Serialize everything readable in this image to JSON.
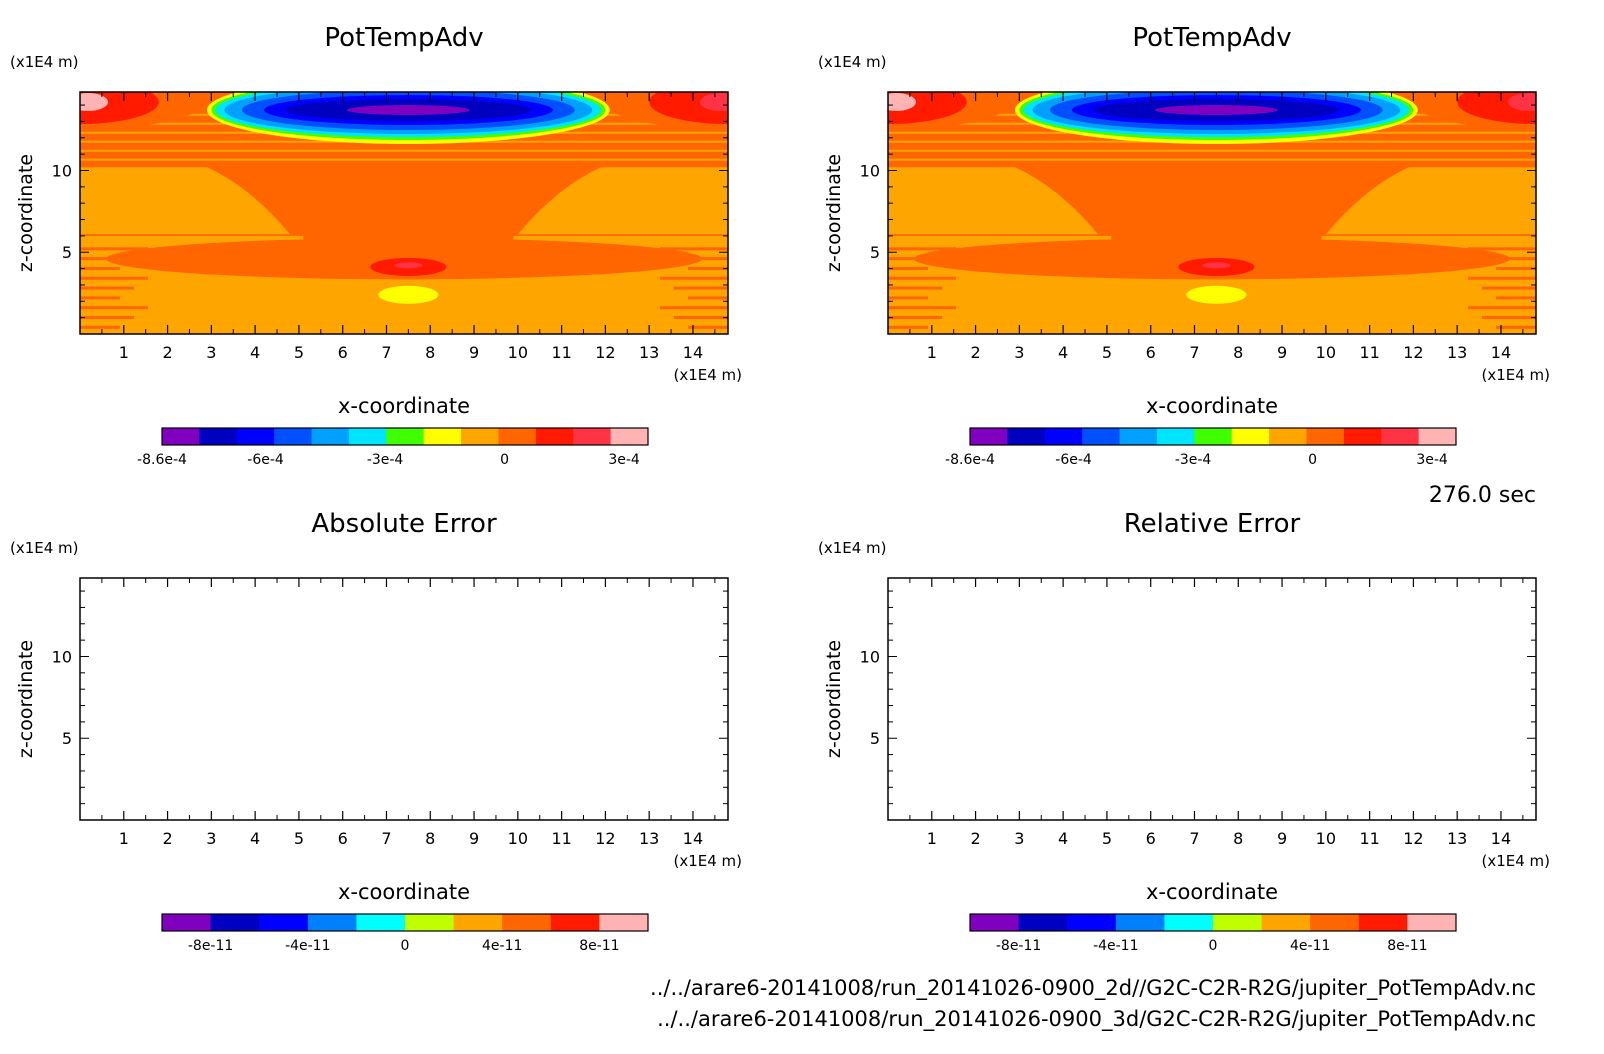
{
  "footer": {
    "timestamp": "276.0 sec",
    "file_1": "../../arare6-20141008/run_20141026-0900_2d//G2C-C2R-R2G/jupiter_PotTempAdv.nc",
    "file_2": "../../arare6-20141008/run_20141026-0900_3d/G2C-C2R-R2G/jupiter_PotTempAdv.nc"
  },
  "chart_data": [
    {
      "type": "heatmap",
      "title": "PotTempAdv",
      "xlabel": "x-coordinate",
      "ylabel": "z-coordinate",
      "x_unit": "(x1E4 m)",
      "y_unit": "(x1E4 m)",
      "xlim": [
        0,
        14.8
      ],
      "ylim": [
        0,
        14.8
      ],
      "x_ticks": [
        "1",
        "2",
        "3",
        "4",
        "5",
        "6",
        "7",
        "8",
        "9",
        "10",
        "11",
        "12",
        "13",
        "14"
      ],
      "y_ticks": [
        "5",
        "10"
      ],
      "colorbar": {
        "colors": [
          "#7f00bf",
          "#0000c0",
          "#0000ff",
          "#0050ff",
          "#00a0ff",
          "#00e5ff",
          "#40ff00",
          "#ffff00",
          "#ffa500",
          "#ff6600",
          "#ff1a00",
          "#ff3344",
          "#ffb3b3"
        ],
        "tick_labels": [
          "-8.6e-4",
          "-6e-4",
          "-3e-4",
          "0",
          "3e-4"
        ],
        "tick_values": [
          -0.00086,
          -0.0006,
          -0.0003,
          0,
          0.0003
        ],
        "range": [
          -0.00086,
          0.00036
        ]
      },
      "field": "filled"
    },
    {
      "type": "heatmap",
      "title": "PotTempAdv",
      "xlabel": "x-coordinate",
      "ylabel": "z-coordinate",
      "x_unit": "(x1E4 m)",
      "y_unit": "(x1E4 m)",
      "xlim": [
        0,
        14.8
      ],
      "ylim": [
        0,
        14.8
      ],
      "x_ticks": [
        "1",
        "2",
        "3",
        "4",
        "5",
        "6",
        "7",
        "8",
        "9",
        "10",
        "11",
        "12",
        "13",
        "14"
      ],
      "y_ticks": [
        "5",
        "10"
      ],
      "colorbar": {
        "colors": [
          "#7f00bf",
          "#0000c0",
          "#0000ff",
          "#0050ff",
          "#00a0ff",
          "#00e5ff",
          "#40ff00",
          "#ffff00",
          "#ffa500",
          "#ff6600",
          "#ff1a00",
          "#ff3344",
          "#ffb3b3"
        ],
        "tick_labels": [
          "-8.6e-4",
          "-6e-4",
          "-3e-4",
          "0",
          "3e-4"
        ],
        "tick_values": [
          -0.00086,
          -0.0006,
          -0.0003,
          0,
          0.0003
        ],
        "range": [
          -0.00086,
          0.00036
        ]
      },
      "field": "filled"
    },
    {
      "type": "heatmap",
      "title": "Absolute Error",
      "xlabel": "x-coordinate",
      "ylabel": "z-coordinate",
      "x_unit": "(x1E4 m)",
      "y_unit": "(x1E4 m)",
      "xlim": [
        0,
        14.8
      ],
      "ylim": [
        0,
        14.8
      ],
      "x_ticks": [
        "1",
        "2",
        "3",
        "4",
        "5",
        "6",
        "7",
        "8",
        "9",
        "10",
        "11",
        "12",
        "13",
        "14"
      ],
      "y_ticks": [
        "5",
        "10"
      ],
      "colorbar": {
        "colors": [
          "#7f00bf",
          "#0000c0",
          "#0000ff",
          "#0080ff",
          "#00ffff",
          "#c0ff00",
          "#ffa500",
          "#ff6600",
          "#ff1a00",
          "#ffb3b3"
        ],
        "tick_labels": [
          "-8e-11",
          "-4e-11",
          "0",
          "4e-11",
          "8e-11"
        ],
        "tick_values": [
          -8e-11,
          -4e-11,
          0,
          4e-11,
          8e-11
        ],
        "range": [
          -1e-10,
          1e-10
        ]
      },
      "field": "empty"
    },
    {
      "type": "heatmap",
      "title": "Relative Error",
      "xlabel": "x-coordinate",
      "ylabel": "z-coordinate",
      "x_unit": "(x1E4 m)",
      "y_unit": "(x1E4 m)",
      "xlim": [
        0,
        14.8
      ],
      "ylim": [
        0,
        14.8
      ],
      "x_ticks": [
        "1",
        "2",
        "3",
        "4",
        "5",
        "6",
        "7",
        "8",
        "9",
        "10",
        "11",
        "12",
        "13",
        "14"
      ],
      "y_ticks": [
        "5",
        "10"
      ],
      "colorbar": {
        "colors": [
          "#7f00bf",
          "#0000c0",
          "#0000ff",
          "#0080ff",
          "#00ffff",
          "#c0ff00",
          "#ffa500",
          "#ff6600",
          "#ff1a00",
          "#ffb3b3"
        ],
        "tick_labels": [
          "-8e-11",
          "-4e-11",
          "0",
          "4e-11",
          "8e-11"
        ],
        "tick_values": [
          -8e-11,
          -4e-11,
          0,
          4e-11,
          8e-11
        ],
        "range": [
          -1e-10,
          1e-10
        ]
      },
      "field": "empty"
    }
  ]
}
